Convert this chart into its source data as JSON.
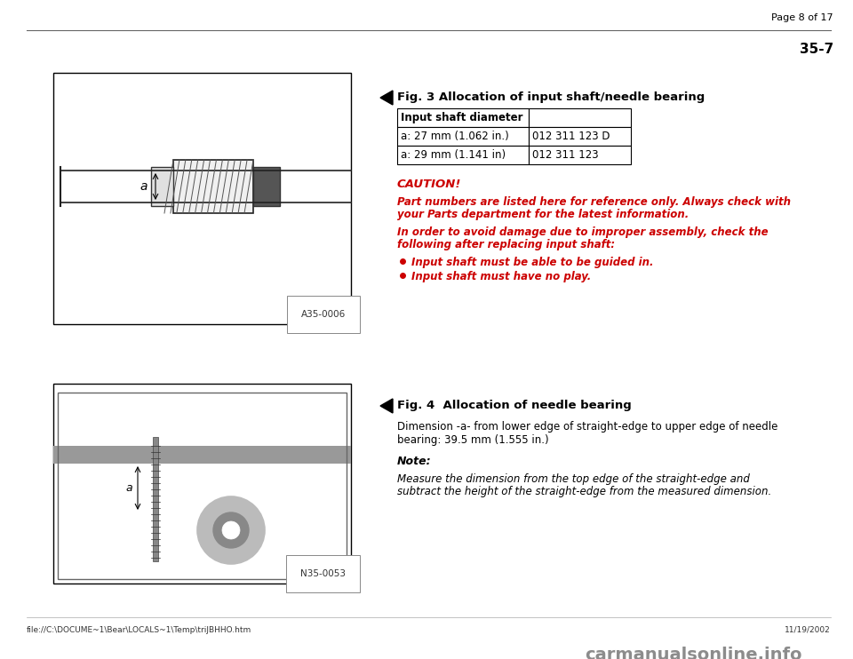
{
  "page_header": "Page 8 of 17",
  "page_number": "35-7",
  "section1": {
    "fig_label": "Fig. 3",
    "fig_title": "   Allocation of input shaft/needle bearing",
    "table_header_col1": "Input shaft diameter",
    "table_rows": [
      [
        "a: 27 mm (1.062 in.)",
        "012 311 123 D"
      ],
      [
        "a: 29 mm (1.141 in)",
        "012 311 123"
      ]
    ],
    "caution_label": "CAUTION!",
    "caution_text1": "Part numbers are listed here for reference only. Always check with",
    "caution_text2": "your Parts department for the latest information.",
    "caution_text3": "In order to avoid damage due to improper assembly, check the",
    "caution_text4": "following after replacing input shaft:",
    "bullet1": "Input shaft must be able to be guided in.",
    "bullet2": "Input shaft must have no play.",
    "image1_label": "A35-0006"
  },
  "section2": {
    "fig_label": "Fig. 4",
    "fig_title": "    Allocation of needle bearing",
    "dim_text1": "Dimension -a- from lower edge of straight-edge to upper edge of needle",
    "dim_text2": "bearing: 39.5 mm (1.555 in.)",
    "note_label": "Note:",
    "note_text1": "Measure the dimension from the top edge of the straight-edge and",
    "note_text2": "subtract the height of the straight-edge from the measured dimension.",
    "image2_label": "N35-0053"
  },
  "footer_text": "file://C:\\DOCUME~1\\Bear\\LOCALS~1\\Temp\\triJBHHO.htm",
  "footer_date": "11/19/2002",
  "watermark": "carmanualsonline.info",
  "bg_color": "#ffffff",
  "text_color": "#000000",
  "red_color": "#cc0000"
}
